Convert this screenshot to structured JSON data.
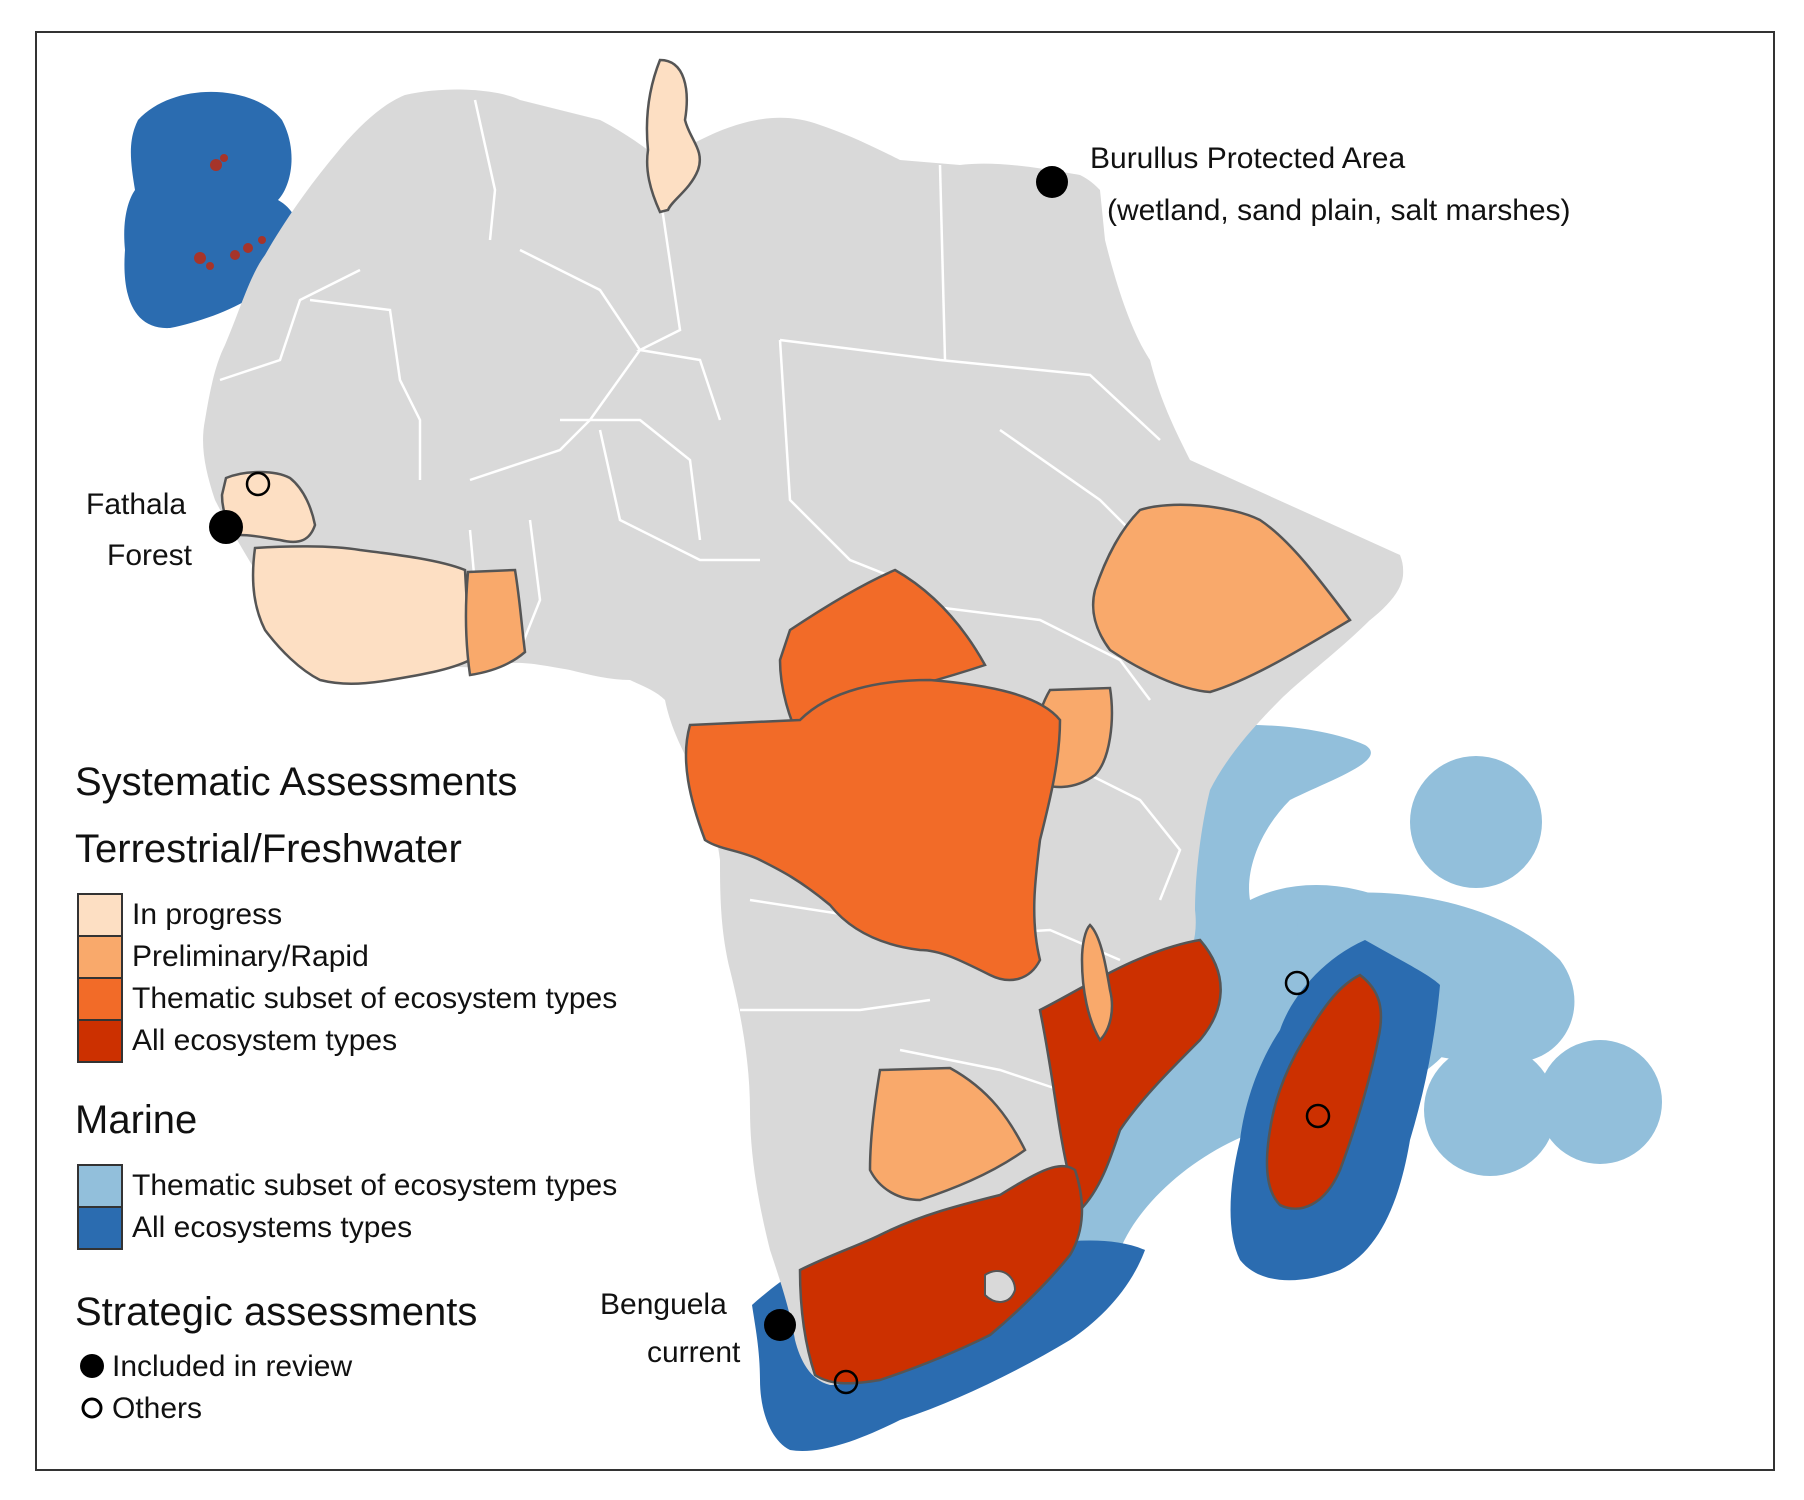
{
  "colors": {
    "land": "#d9d9d9",
    "border": "#ffffff",
    "assessed_outline": "#555555",
    "in_progress": "#fddfc3",
    "preliminary": "#f9a96b",
    "thematic_terrestrial": "#f26b28",
    "all_terrestrial": "#cc3000",
    "thematic_marine": "#92bfdb",
    "all_marine": "#2b6cb0",
    "dot": "#000000"
  },
  "annotations": {
    "burullus_line1": "Burullus Protected Area",
    "burullus_line2": "(wetland, sand plain, salt marshes)",
    "fathala_line1": "Fathala",
    "fathala_line2": "Forest",
    "benguela_line1": "Benguela",
    "benguela_line2": "current"
  },
  "legend": {
    "title": "Systematic Assessments",
    "terrestrial_heading": "Terrestrial/Freshwater",
    "terrestrial_items": [
      {
        "label": "In progress",
        "color": "#fddfc3"
      },
      {
        "label": "Preliminary/Rapid",
        "color": "#f9a96b"
      },
      {
        "label": "Thematic subset of ecosystem types",
        "color": "#f26b28"
      },
      {
        "label": "All ecosystem types",
        "color": "#cc3000"
      }
    ],
    "marine_heading": "Marine",
    "marine_items": [
      {
        "label": "Thematic subset of ecosystem types",
        "color": "#92bfdb"
      },
      {
        "label": "All ecosystems types",
        "color": "#2b6cb0"
      }
    ],
    "strategic_heading": "Strategic assessments",
    "strategic_items": [
      {
        "label": "Included in review",
        "marker": "filled"
      },
      {
        "label": "Others",
        "marker": "open"
      }
    ]
  }
}
